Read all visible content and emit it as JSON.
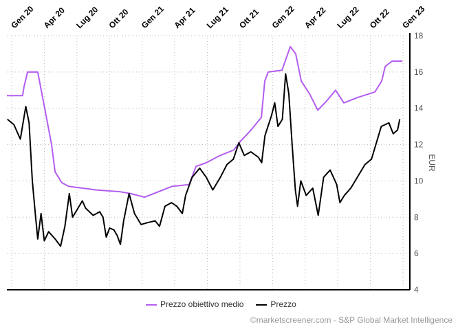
{
  "chart_data": {
    "type": "line",
    "title": "",
    "xlabel": "",
    "ylabel": "EUR",
    "x_unit": "months since Gen 20",
    "x_ticks": [
      "Gen 20",
      "Apr 20",
      "Lug 20",
      "Ott 20",
      "Gen 21",
      "Apr 21",
      "Lug 21",
      "Ott 21",
      "Gen 22",
      "Apr 22",
      "Lug 22",
      "Ott 22",
      "Gen 23"
    ],
    "y_ticks": [
      "4",
      "6",
      "8",
      "10",
      "12",
      "14",
      "16",
      "18"
    ],
    "ylim": [
      4,
      18
    ],
    "xlim": [
      -0.45,
      36.4
    ],
    "grid": true,
    "legend_position": "bottom",
    "series": [
      {
        "name": "Prezzo obiettivo medio",
        "color": "#b45cf0",
        "x": [
          -0.44,
          1.0,
          1.14,
          1.46,
          2.4,
          3.04,
          3.67,
          3.99,
          4.62,
          5.25,
          6.52,
          7.78,
          10.0,
          10.95,
          12.21,
          13.48,
          14.74,
          16.32,
          16.96,
          17.9,
          19.17,
          20.43,
          21.07,
          22.02,
          22.97,
          23.28,
          23.6,
          24.87,
          25.63,
          26.13,
          26.64,
          27.4,
          28.16,
          28.98,
          29.8,
          30.56,
          31.83,
          33.41,
          34.04,
          34.36,
          34.99,
          35.94
        ],
        "y": [
          14.7,
          14.7,
          15.2,
          16.0,
          16.0,
          14.0,
          12.0,
          10.5,
          9.9,
          9.7,
          9.6,
          9.5,
          9.4,
          9.3,
          9.1,
          9.4,
          9.7,
          9.8,
          10.8,
          11.0,
          11.4,
          11.7,
          12.2,
          12.8,
          13.5,
          15.5,
          16.0,
          16.1,
          17.4,
          17.0,
          15.5,
          14.8,
          13.9,
          14.4,
          15.0,
          14.3,
          14.6,
          14.9,
          15.5,
          16.3,
          16.6,
          16.6
        ]
      },
      {
        "name": "Prezzo",
        "color": "#000000",
        "x": [
          -0.4,
          0.2,
          0.8,
          1.3,
          1.6,
          1.9,
          2.2,
          2.4,
          2.7,
          3.0,
          3.4,
          4.0,
          4.5,
          4.9,
          5.3,
          5.6,
          5.9,
          6.5,
          6.8,
          7.5,
          8.1,
          8.4,
          8.7,
          9.0,
          9.4,
          9.7,
          10.0,
          10.3,
          10.8,
          11.3,
          11.9,
          12.5,
          13.2,
          13.6,
          14.1,
          14.7,
          15.2,
          15.7,
          16.0,
          16.6,
          17.3,
          17.9,
          18.5,
          19.2,
          19.8,
          20.4,
          20.9,
          21.4,
          22.0,
          22.7,
          23.0,
          23.3,
          23.9,
          24.2,
          24.5,
          24.9,
          25.2,
          25.5,
          25.8,
          26.1,
          26.3,
          26.6,
          27.1,
          27.7,
          28.2,
          28.7,
          29.3,
          29.9,
          30.2,
          30.6,
          31.2,
          31.8,
          32.5,
          33.1,
          33.6,
          34.0,
          34.7,
          35.1,
          35.5,
          35.7
        ],
        "y": [
          13.4,
          13.1,
          12.3,
          14.1,
          13.2,
          10.0,
          8.0,
          6.8,
          8.2,
          6.7,
          7.2,
          6.8,
          6.4,
          7.5,
          9.3,
          8.0,
          8.3,
          8.9,
          8.5,
          8.1,
          8.3,
          8.0,
          6.9,
          7.4,
          7.3,
          7.0,
          6.5,
          7.8,
          9.3,
          8.2,
          7.6,
          7.7,
          7.8,
          7.5,
          8.6,
          8.8,
          8.6,
          8.2,
          9.2,
          10.2,
          10.7,
          10.2,
          9.5,
          10.2,
          10.9,
          11.2,
          12.1,
          11.4,
          11.6,
          11.3,
          11.0,
          12.5,
          13.6,
          14.3,
          13.0,
          13.4,
          15.9,
          14.8,
          12.0,
          9.5,
          8.6,
          10.0,
          9.2,
          9.6,
          8.1,
          10.2,
          10.6,
          9.8,
          8.8,
          9.2,
          9.6,
          10.2,
          10.9,
          11.2,
          12.2,
          13.0,
          13.2,
          12.6,
          12.8,
          13.4
        ]
      }
    ]
  },
  "legend": {
    "target_label": "Prezzo obiettivo medio",
    "price_label": "Prezzo"
  },
  "credit": "©marketscreener.com - S&P Global Market Intelligence"
}
